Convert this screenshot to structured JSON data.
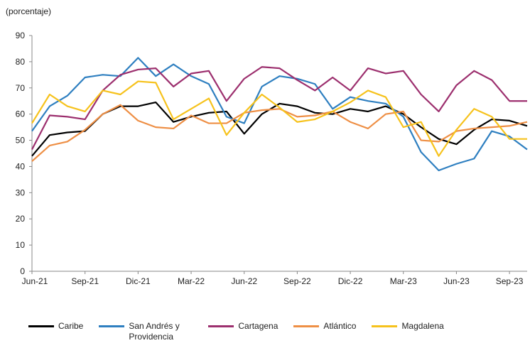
{
  "chart_data": {
    "type": "line",
    "y_label": "(porcentaje)",
    "categories": [
      "Jun-21",
      null,
      null,
      "Sep-21",
      null,
      null,
      "Dic-21",
      null,
      null,
      "Mar-22",
      null,
      null,
      "Jun-22",
      null,
      null,
      "Sep-22",
      null,
      null,
      "Dic-22",
      null,
      null,
      "Mar-23",
      null,
      null,
      "Jun-23",
      null,
      null,
      "Sep-23",
      null
    ],
    "ylim": [
      0,
      90
    ],
    "yticks": [
      0,
      10,
      20,
      30,
      40,
      50,
      60,
      70,
      80,
      90
    ],
    "series": [
      {
        "name": "Caribe",
        "color": "#000000",
        "values": [
          44,
          52,
          53,
          53.5,
          60,
          63,
          63,
          64.5,
          57,
          59,
          60.5,
          61,
          52.5,
          60,
          64,
          63,
          60.5,
          60,
          62,
          61,
          63,
          60,
          55,
          50.5,
          48.5,
          54,
          58,
          57.5,
          55.5
        ]
      },
      {
        "name": "San Andrés y Providencia",
        "color": "#2e7fc0",
        "values": [
          53.5,
          63,
          67,
          74,
          75,
          74.5,
          81.5,
          74.5,
          79,
          74.5,
          71.5,
          59,
          56.5,
          70.5,
          74.5,
          73.5,
          71.5,
          62,
          66.5,
          65,
          64,
          59,
          45.5,
          38.5,
          41,
          43,
          53.5,
          51.5,
          46.5
        ]
      },
      {
        "name": "Cartagena",
        "color": "#9c2f6e",
        "values": [
          46.5,
          59.5,
          59,
          58,
          69,
          75,
          77,
          77.5,
          70.5,
          75.5,
          76.5,
          65,
          73.5,
          78,
          77.5,
          73,
          69,
          74,
          69,
          77.5,
          75.5,
          76.5,
          67.5,
          61,
          71,
          76.5,
          73,
          65,
          65
        ]
      },
      {
        "name": "Atlántico",
        "color": "#ee8f45",
        "values": [
          42,
          48,
          49.5,
          54,
          60,
          63.5,
          57.5,
          55,
          54.5,
          59.5,
          56.5,
          56.5,
          60.5,
          61.5,
          62,
          59,
          59.5,
          61,
          57,
          54.5,
          60,
          61,
          50,
          49.5,
          53.5,
          54.5,
          55,
          55.5,
          57
        ]
      },
      {
        "name": "Magdalena",
        "color": "#f6c21c",
        "values": [
          56.5,
          67.5,
          63,
          61,
          69,
          67.5,
          72.5,
          72,
          58,
          62,
          66,
          52,
          60.5,
          67.5,
          62.5,
          57,
          58,
          61,
          64.5,
          69,
          66.5,
          55,
          57,
          44,
          54,
          62,
          59,
          50.5,
          50.5
        ]
      }
    ]
  }
}
